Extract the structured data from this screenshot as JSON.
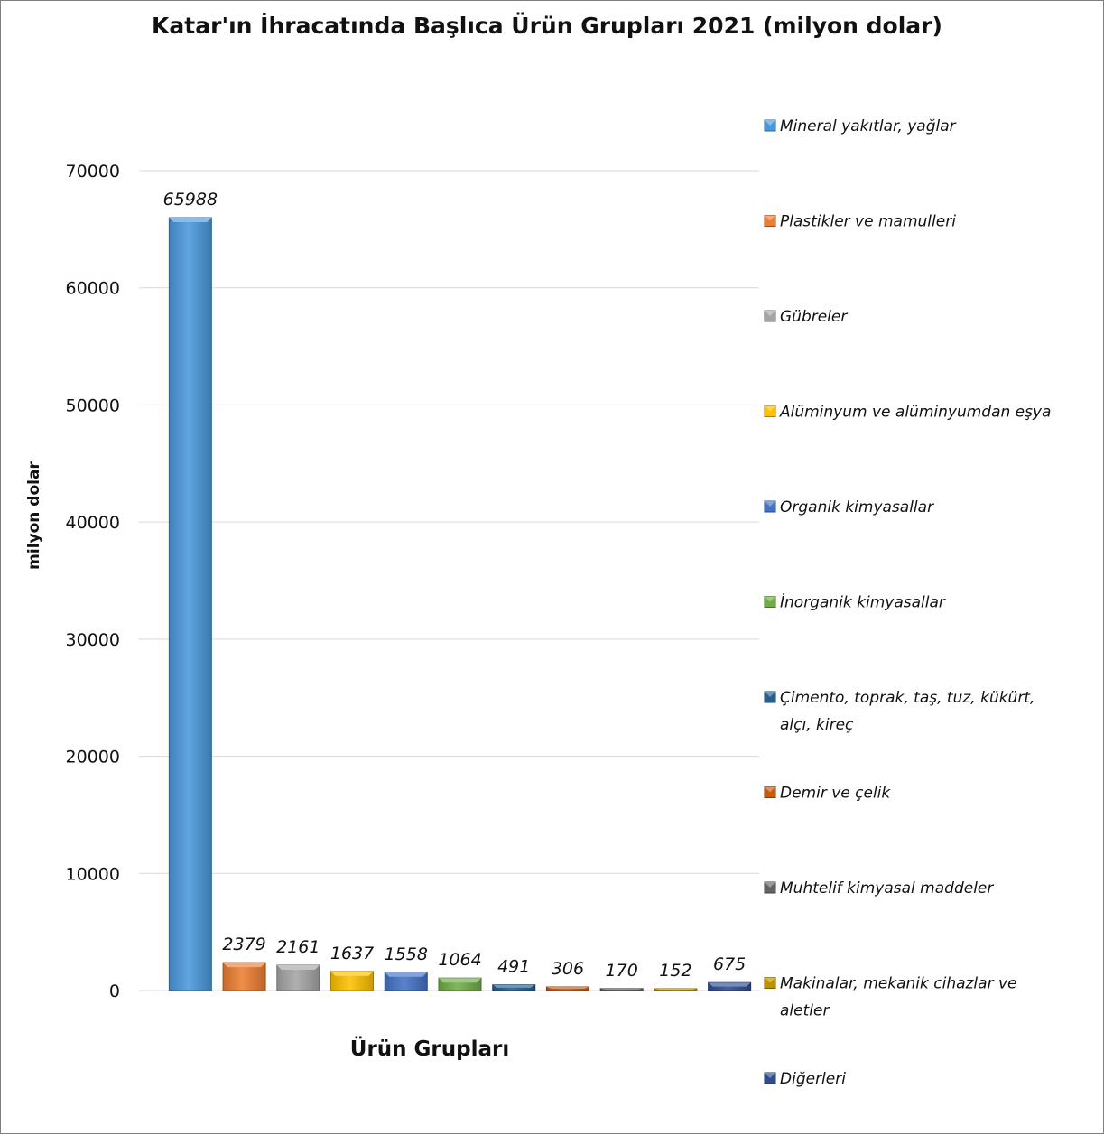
{
  "chart_data": {
    "type": "bar",
    "title": "Katar'ın İhracatında Başlıca Ürün Grupları 2021 (milyon dolar)",
    "xlabel": "Ürün Grupları",
    "ylabel": "milyon dolar",
    "ylim": [
      0,
      70000
    ],
    "yticks": [
      0,
      10000,
      20000,
      30000,
      40000,
      50000,
      60000,
      70000
    ],
    "ytick_labels": [
      "0",
      "10000",
      "20000",
      "30000",
      "40000",
      "50000",
      "60000",
      "70000"
    ],
    "grid": true,
    "legend_position": "right",
    "series": [
      {
        "name": "Mineral yakıtlar, yağlar",
        "value": 65988,
        "label": "65988",
        "color": "#4a98dc"
      },
      {
        "name": "Plastikler ve mamulleri",
        "value": 2379,
        "label": "2379",
        "color": "#ed7d31"
      },
      {
        "name": "Gübreler",
        "value": 2161,
        "label": "2161",
        "color": "#a5a5a5"
      },
      {
        "name": "Alüminyum ve alüminyumdan eşya",
        "value": 1637,
        "label": "1637",
        "color": "#ffc000"
      },
      {
        "name": "Organik kimyasallar",
        "value": 1558,
        "label": "1558",
        "color": "#4472c4"
      },
      {
        "name": "İnorganik kimyasallar",
        "value": 1064,
        "label": "1064",
        "color": "#70ad47"
      },
      {
        "name": "Çimento, toprak, taş, tuz, kükürt, alçı, kireç",
        "value": 491,
        "label": "491",
        "color": "#255e91"
      },
      {
        "name": "Demir ve çelik",
        "value": 306,
        "label": "306",
        "color": "#c55a11"
      },
      {
        "name": "Muhtelif kimyasal maddeler",
        "value": 170,
        "label": "170",
        "color": "#636363"
      },
      {
        "name": "Makinalar, mekanik cihazlar ve aletler",
        "value": 152,
        "label": "152",
        "color": "#bf9000"
      },
      {
        "name": "Diğerleri",
        "value": 675,
        "label": "675",
        "color": "#2f4d8f"
      }
    ]
  }
}
